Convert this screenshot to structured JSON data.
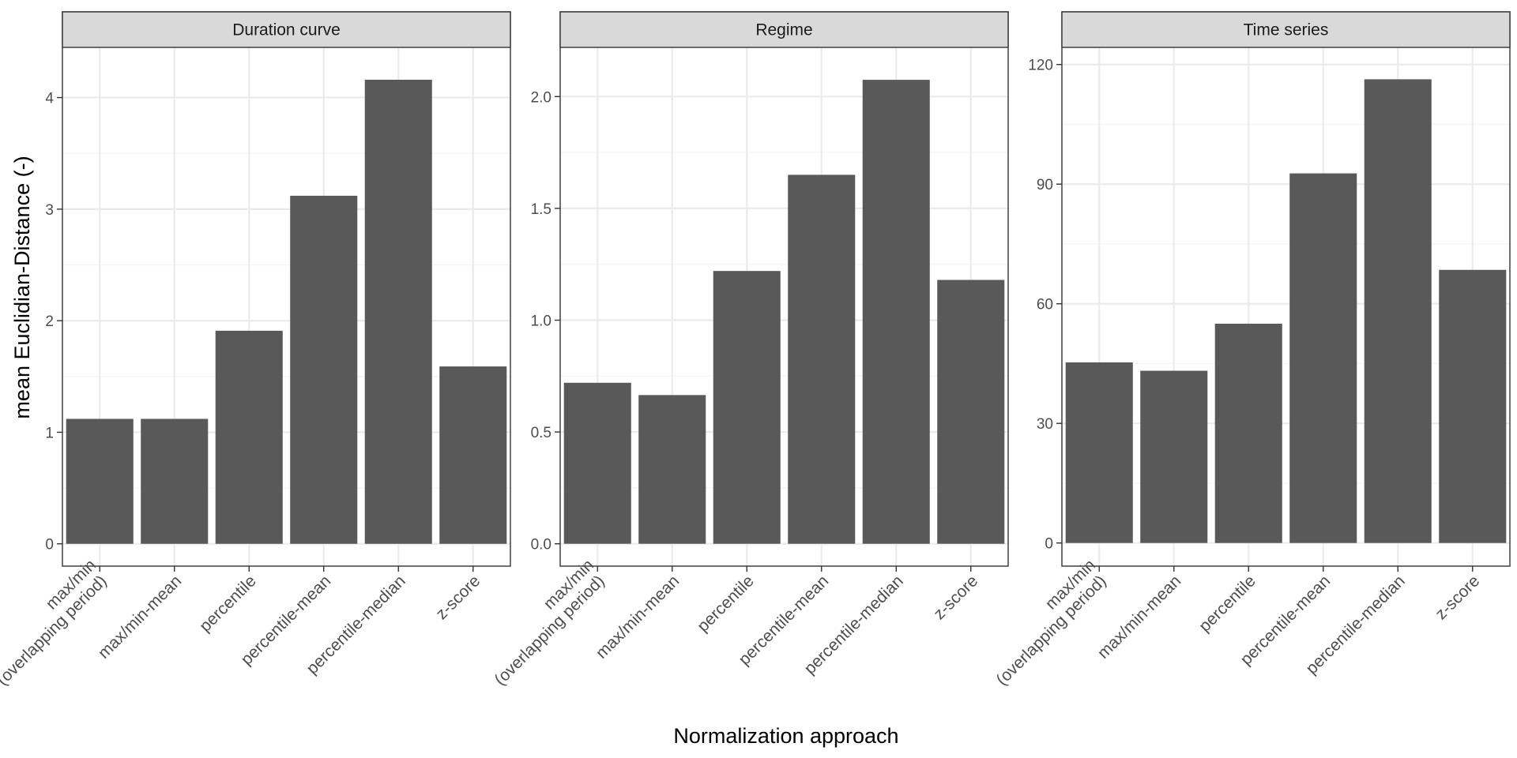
{
  "chart_data": {
    "type": "bar",
    "xlabel": "Normalization approach",
    "ylabel": "mean Euclidian-Distance (-)",
    "grid": true,
    "categories": [
      [
        "max/min",
        "(overlapping period)"
      ],
      [
        "max/min-mean"
      ],
      [
        "percentile"
      ],
      [
        "percentile-mean"
      ],
      [
        "percentile-median"
      ],
      [
        "z-score"
      ]
    ],
    "panels": [
      {
        "title": "Duration curve",
        "values": [
          1.12,
          1.12,
          1.91,
          3.12,
          4.16,
          1.59
        ],
        "ylim": [
          -0.2,
          4.45
        ],
        "ticks": [
          0,
          1,
          2,
          3,
          4
        ],
        "tick_labels": [
          "0",
          "1",
          "2",
          "3",
          "4"
        ]
      },
      {
        "title": "Regime",
        "values": [
          0.72,
          0.665,
          1.22,
          1.65,
          2.075,
          1.18
        ],
        "ylim": [
          -0.1,
          2.22
        ],
        "ticks": [
          0.0,
          0.5,
          1.0,
          1.5,
          2.0
        ],
        "tick_labels": [
          "0.0",
          "0.5",
          "1.0",
          "1.5",
          "2.0"
        ]
      },
      {
        "title": "Time series",
        "values": [
          45.3,
          43.2,
          55.0,
          92.7,
          116.3,
          68.5
        ],
        "ylim": [
          -5.8,
          124.3
        ],
        "ticks": [
          0,
          30,
          60,
          90,
          120
        ],
        "tick_labels": [
          "0",
          "30",
          "60",
          "90",
          "120"
        ]
      }
    ],
    "colors": {
      "bar": "#595959",
      "strip": "#d9d9d9",
      "grid_major": "#ebebeb",
      "grid_minor": "#f5f5f5",
      "border": "#333333",
      "tick_text": "#4d4d4d",
      "title_text": "#1a1a1a"
    }
  }
}
